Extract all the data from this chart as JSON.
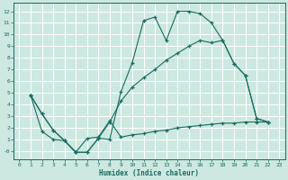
{
  "xlabel": "Humidex (Indice chaleur)",
  "bg_color": "#cce8e0",
  "grid_color": "#ffffff",
  "line_color": "#1a6b60",
  "xlim": [
    -0.5,
    23.5
  ],
  "ylim": [
    -0.7,
    12.7
  ],
  "xticks": [
    0,
    1,
    2,
    3,
    4,
    5,
    6,
    7,
    8,
    9,
    10,
    11,
    12,
    13,
    14,
    15,
    16,
    17,
    18,
    19,
    20,
    21,
    22,
    23
  ],
  "yticks": [
    0,
    1,
    2,
    3,
    4,
    5,
    6,
    7,
    8,
    9,
    10,
    11,
    12
  ],
  "ytick_labels": [
    "-0",
    "1",
    "2",
    "3",
    "4",
    "5",
    "6",
    "7",
    "8",
    "9",
    "10",
    "11",
    "12"
  ],
  "line1_x": [
    1,
    2,
    3,
    4,
    5,
    6,
    7,
    8,
    9,
    10,
    11,
    12,
    13,
    14,
    15,
    16,
    17,
    18,
    19,
    20,
    21,
    22
  ],
  "line1_y": [
    4.8,
    3.2,
    1.8,
    0.9,
    -0.1,
    -0.1,
    1.1,
    1.0,
    5.1,
    7.6,
    11.2,
    11.5,
    9.5,
    12.0,
    12.0,
    11.8,
    11.0,
    9.5,
    7.5,
    6.5,
    2.8,
    2.5
  ],
  "line2_x": [
    1,
    2,
    3,
    4,
    5,
    6,
    7,
    8,
    9,
    10,
    11,
    12,
    13,
    14,
    15,
    16,
    17,
    18,
    19,
    20,
    21,
    22
  ],
  "line2_y": [
    4.8,
    3.2,
    1.8,
    0.9,
    -0.1,
    -0.1,
    1.1,
    2.5,
    4.3,
    5.5,
    6.3,
    7.0,
    7.8,
    8.4,
    9.0,
    9.5,
    9.3,
    9.5,
    7.5,
    6.5,
    2.8,
    2.5
  ],
  "line3_x": [
    1,
    2,
    3,
    4,
    5,
    6,
    7,
    8,
    9,
    10,
    11,
    12,
    13,
    14,
    15,
    16,
    17,
    18,
    19,
    20,
    21,
    22
  ],
  "line3_y": [
    4.8,
    1.7,
    1.0,
    0.9,
    -0.1,
    1.1,
    1.2,
    2.6,
    1.2,
    1.4,
    1.5,
    1.7,
    1.8,
    2.0,
    2.1,
    2.2,
    2.3,
    2.4,
    2.4,
    2.5,
    2.5,
    2.5
  ]
}
